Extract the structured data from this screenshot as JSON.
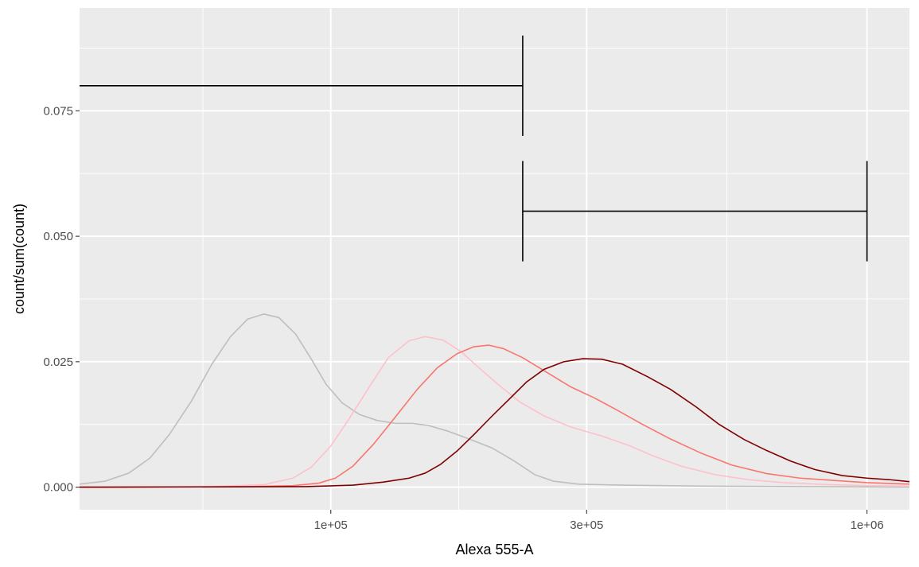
{
  "chart_data": {
    "type": "line",
    "title": "",
    "xlabel": "Alexa 555-A",
    "ylabel": "count/sum(count)",
    "x_scale": "log10",
    "xlim": [
      34000,
      1200000
    ],
    "ylim": [
      -0.0045,
      0.0955
    ],
    "x_ticks": [
      {
        "value": 100000,
        "label": "1e+05"
      },
      {
        "value": 300000,
        "label": "3e+05"
      },
      {
        "value": 1000000,
        "label": "1e+06"
      }
    ],
    "y_ticks": [
      {
        "value": 0.0,
        "label": "0.000"
      },
      {
        "value": 0.025,
        "label": "0.025"
      },
      {
        "value": 0.05,
        "label": "0.050"
      },
      {
        "value": 0.075,
        "label": "0.075"
      }
    ],
    "grid": true,
    "legend": "none",
    "series": [
      {
        "color": "#bebebe",
        "points": [
          [
            34000,
            0.0006
          ],
          [
            38000,
            0.0012
          ],
          [
            42000,
            0.0028
          ],
          [
            46000,
            0.0058
          ],
          [
            50000,
            0.0105
          ],
          [
            55000,
            0.0172
          ],
          [
            60000,
            0.0245
          ],
          [
            65000,
            0.03
          ],
          [
            70000,
            0.0335
          ],
          [
            75000,
            0.0345
          ],
          [
            80000,
            0.0338
          ],
          [
            86000,
            0.0305
          ],
          [
            92000,
            0.0255
          ],
          [
            98000,
            0.0205
          ],
          [
            105000,
            0.0168
          ],
          [
            113000,
            0.0145
          ],
          [
            122000,
            0.0133
          ],
          [
            132000,
            0.0127
          ],
          [
            142000,
            0.0127
          ],
          [
            152000,
            0.0123
          ],
          [
            165000,
            0.0112
          ],
          [
            180000,
            0.0097
          ],
          [
            200000,
            0.0078
          ],
          [
            220000,
            0.0052
          ],
          [
            240000,
            0.0025
          ],
          [
            260000,
            0.0012
          ],
          [
            290000,
            0.0006
          ],
          [
            350000,
            0.0004
          ],
          [
            500000,
            0.0002
          ],
          [
            800000,
            0.0001
          ],
          [
            1200000,
            0.0
          ]
        ]
      },
      {
        "color": "#ffc0cb",
        "points": [
          [
            34000,
            0.0
          ],
          [
            60000,
            0.0001
          ],
          [
            75000,
            0.0005
          ],
          [
            85000,
            0.0018
          ],
          [
            92000,
            0.004
          ],
          [
            100000,
            0.0082
          ],
          [
            108000,
            0.0135
          ],
          [
            118000,
            0.02
          ],
          [
            128000,
            0.0258
          ],
          [
            140000,
            0.0292
          ],
          [
            150000,
            0.03
          ],
          [
            162000,
            0.0293
          ],
          [
            175000,
            0.027
          ],
          [
            188000,
            0.024
          ],
          [
            205000,
            0.0205
          ],
          [
            225000,
            0.017
          ],
          [
            250000,
            0.0142
          ],
          [
            280000,
            0.012
          ],
          [
            320000,
            0.0102
          ],
          [
            360000,
            0.0083
          ],
          [
            400000,
            0.0062
          ],
          [
            450000,
            0.0042
          ],
          [
            520000,
            0.0025
          ],
          [
            600000,
            0.0015
          ],
          [
            700000,
            0.0009
          ],
          [
            850000,
            0.0005
          ],
          [
            1000000,
            0.0003
          ],
          [
            1200000,
            0.0002
          ]
        ]
      },
      {
        "color": "#f8766d",
        "points": [
          [
            34000,
            0.0
          ],
          [
            70000,
            0.0001
          ],
          [
            85000,
            0.0003
          ],
          [
            95000,
            0.0008
          ],
          [
            102000,
            0.0018
          ],
          [
            110000,
            0.0042
          ],
          [
            120000,
            0.0085
          ],
          [
            132000,
            0.014
          ],
          [
            145000,
            0.0195
          ],
          [
            158000,
            0.0238
          ],
          [
            172000,
            0.0266
          ],
          [
            185000,
            0.028
          ],
          [
            197000,
            0.0283
          ],
          [
            210000,
            0.0276
          ],
          [
            228000,
            0.0258
          ],
          [
            250000,
            0.0232
          ],
          [
            280000,
            0.02
          ],
          [
            310000,
            0.0178
          ],
          [
            340000,
            0.0155
          ],
          [
            380000,
            0.0126
          ],
          [
            430000,
            0.0096
          ],
          [
            490000,
            0.0068
          ],
          [
            560000,
            0.0044
          ],
          [
            650000,
            0.0027
          ],
          [
            750000,
            0.0018
          ],
          [
            880000,
            0.0013
          ],
          [
            1000000,
            0.0009
          ],
          [
            1200000,
            0.0006
          ]
        ]
      },
      {
        "color": "#800000",
        "points": [
          [
            34000,
            0.0
          ],
          [
            90000,
            0.0001
          ],
          [
            110000,
            0.0004
          ],
          [
            125000,
            0.001
          ],
          [
            140000,
            0.0018
          ],
          [
            150000,
            0.0028
          ],
          [
            160000,
            0.0045
          ],
          [
            172000,
            0.0072
          ],
          [
            185000,
            0.0105
          ],
          [
            200000,
            0.0142
          ],
          [
            215000,
            0.0175
          ],
          [
            232000,
            0.021
          ],
          [
            250000,
            0.0235
          ],
          [
            272000,
            0.025
          ],
          [
            295000,
            0.0256
          ],
          [
            320000,
            0.0255
          ],
          [
            350000,
            0.0245
          ],
          [
            390000,
            0.022
          ],
          [
            430000,
            0.0195
          ],
          [
            480000,
            0.016
          ],
          [
            530000,
            0.0125
          ],
          [
            590000,
            0.0095
          ],
          [
            650000,
            0.0073
          ],
          [
            720000,
            0.0052
          ],
          [
            800000,
            0.0035
          ],
          [
            900000,
            0.0023
          ],
          [
            1000000,
            0.0018
          ],
          [
            1100000,
            0.0015
          ],
          [
            1200000,
            0.0011
          ]
        ]
      }
    ],
    "annotations": {
      "color": "#000000",
      "brackets": [
        {
          "x_start": 34000,
          "x_end": 228000,
          "y": 0.08,
          "cap_low": 0.07,
          "cap_high": 0.09,
          "left_cap": false,
          "right_cap": true
        },
        {
          "x_start": 228000,
          "x_end": 1000000,
          "y": 0.055,
          "cap_low": 0.045,
          "cap_high": 0.065,
          "left_cap": true,
          "right_cap": true
        }
      ]
    }
  }
}
